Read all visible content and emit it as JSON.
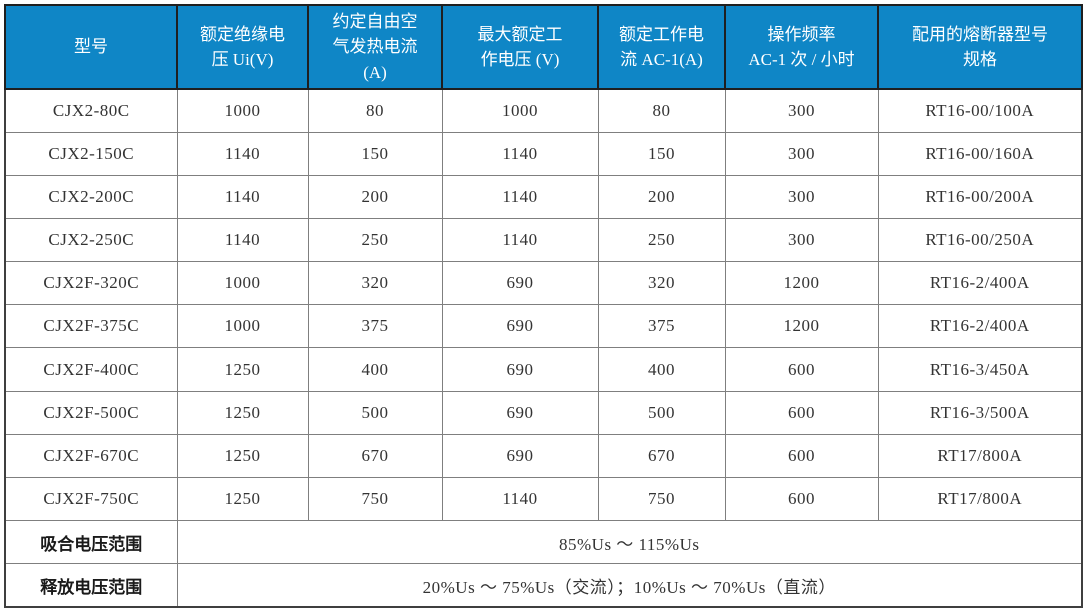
{
  "colors": {
    "header_bg": "#0f86c6",
    "header_text": "#ffffff",
    "body_text": "#333333",
    "grid_line": "#7f7f7f",
    "outer_border": "#3f3f3f",
    "header_divider": "#1f1f1f"
  },
  "table": {
    "columns": [
      {
        "label": "型号"
      },
      {
        "label": "额定绝缘电\n压 Ui(V)"
      },
      {
        "label": "约定自由空\n气发热电流\n(A)"
      },
      {
        "label": "最大额定工\n作电压 (V)"
      },
      {
        "label": "额定工作电\n流 AC-1(A)"
      },
      {
        "label": "操作频率\nAC-1 次 / 小时"
      },
      {
        "label": "配用的熔断器型号\n规格"
      }
    ],
    "rows": [
      [
        "CJX2-80C",
        "1000",
        "80",
        "1000",
        "80",
        "300",
        "RT16-00/100A"
      ],
      [
        "CJX2-150C",
        "1140",
        "150",
        "1140",
        "150",
        "300",
        "RT16-00/160A"
      ],
      [
        "CJX2-200C",
        "1140",
        "200",
        "1140",
        "200",
        "300",
        "RT16-00/200A"
      ],
      [
        "CJX2-250C",
        "1140",
        "250",
        "1140",
        "250",
        "300",
        "RT16-00/250A"
      ],
      [
        "CJX2F-320C",
        "1000",
        "320",
        "690",
        "320",
        "1200",
        "RT16-2/400A"
      ],
      [
        "CJX2F-375C",
        "1000",
        "375",
        "690",
        "375",
        "1200",
        "RT16-2/400A"
      ],
      [
        "CJX2F-400C",
        "1250",
        "400",
        "690",
        "400",
        "600",
        "RT16-3/450A"
      ],
      [
        "CJX2F-500C",
        "1250",
        "500",
        "690",
        "500",
        "600",
        "RT16-3/500A"
      ],
      [
        "CJX2F-670C",
        "1250",
        "670",
        "690",
        "670",
        "600",
        "RT17/800A"
      ],
      [
        "CJX2F-750C",
        "1250",
        "750",
        "1140",
        "750",
        "600",
        "RT17/800A"
      ]
    ],
    "footer_rows": [
      {
        "label": "吸合电压范围",
        "value": "85%Us ～ 115%Us"
      },
      {
        "label": "释放电压范围",
        "value": "20%Us ～ 75%Us（交流）；10%Us ～ 70%Us（直流）"
      }
    ]
  }
}
